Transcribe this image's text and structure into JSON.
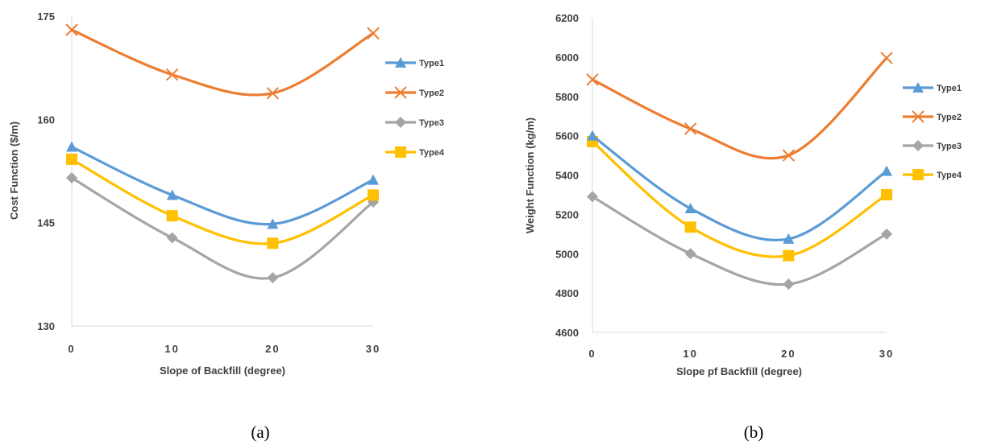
{
  "charts": [
    {
      "id": "a",
      "caption": "(a)",
      "xlabel": "Slope of Backfill (degree)",
      "ylabel": "Cost Function ($/m)"
    },
    {
      "id": "b",
      "caption": "(b)",
      "xlabel": "Slope pf Backfill (degree)",
      "ylabel": "Weight Function (kg/m)"
    }
  ],
  "series_colors": {
    "Type1": "#5b9bd5",
    "Type2": "#ed7d31",
    "Type3": "#a5a5a5",
    "Type4": "#ffc000"
  },
  "series_markers": {
    "Type1": "triangle",
    "Type2": "x",
    "Type3": "diamond",
    "Type4": "square"
  },
  "chart_data": [
    {
      "type": "line",
      "x": [
        0,
        10,
        20,
        30
      ],
      "x_tick_labels": [
        "0",
        "10",
        "20",
        "30"
      ],
      "xlabel": "Slope of Backfill (degree)",
      "ylabel": "Cost Function ($/m)",
      "ylim": [
        130,
        175
      ],
      "y_ticks": [
        130,
        145,
        160,
        175
      ],
      "grid": false,
      "legend": "right",
      "series": [
        {
          "name": "Type1",
          "values": [
            156,
            149,
            144.8,
            151.2
          ]
        },
        {
          "name": "Type2",
          "values": [
            173,
            166.5,
            163.8,
            172.5
          ]
        },
        {
          "name": "Type3",
          "values": [
            151.5,
            142.8,
            137,
            148
          ]
        },
        {
          "name": "Type4",
          "values": [
            154.2,
            146,
            142,
            149
          ]
        }
      ]
    },
    {
      "type": "line",
      "x": [
        0,
        10,
        20,
        30
      ],
      "x_tick_labels": [
        "0",
        "10",
        "20",
        "30"
      ],
      "xlabel": "Slope pf Backfill (degree)",
      "ylabel": "Weight Function (kg/m)",
      "ylim": [
        4600,
        6200
      ],
      "y_ticks": [
        4600,
        4800,
        5000,
        5200,
        5400,
        5600,
        5800,
        6000,
        6200
      ],
      "grid": false,
      "legend": "right",
      "series": [
        {
          "name": "Type1",
          "values": [
            5600,
            5230,
            5075,
            5420
          ]
        },
        {
          "name": "Type2",
          "values": [
            5885,
            5635,
            5500,
            5995
          ]
        },
        {
          "name": "Type3",
          "values": [
            5290,
            5000,
            4845,
            5100
          ]
        },
        {
          "name": "Type4",
          "values": [
            5570,
            5135,
            4990,
            5300
          ]
        }
      ]
    }
  ]
}
